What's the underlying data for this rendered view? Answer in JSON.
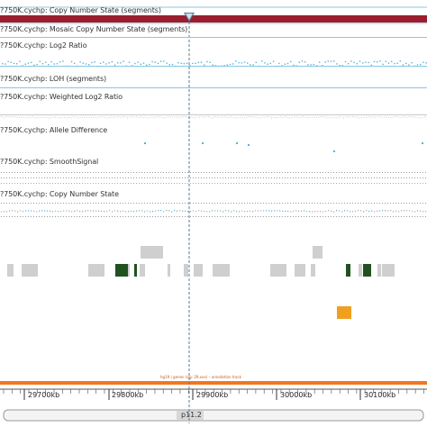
{
  "tracks": {
    "cn_segments": "?750K.cychp: Copy Number State (segments)",
    "mosaic": "?750K.cychp: Mosaic Copy Number State (segments)",
    "log2": "?750K.cychp: Log2 Ratio",
    "loh": "?750K.cychp: LOH (segments)",
    "weighted_log2": "?750K.cychp: Weighted Log2 Ratio",
    "allele_diff": "?750K.cychp: Allele Difference",
    "smooth": "?750K.cychp: SmoothSignal",
    "cn_state": "?750K.cychp: Copy Number State"
  },
  "genome": {
    "ticks": [
      "29700kb",
      "29800kb",
      "29900kb",
      "30000kb",
      "30100kb"
    ],
    "band": "p11.2",
    "gene_annotation": "hg19 | genes (sig: 29,xxx) – annotation track"
  },
  "colors": {
    "segment": "#9a1e2e",
    "track_line": "#88c8e2",
    "gene_light": "#cfcfcf",
    "gene_dark": "#1f5220",
    "highlight": "#f0a020",
    "orange_bar": "#f07820",
    "cursor": "#5a7a9a"
  },
  "icons": {
    "cursor_handle": "triangle-marker-icon"
  }
}
